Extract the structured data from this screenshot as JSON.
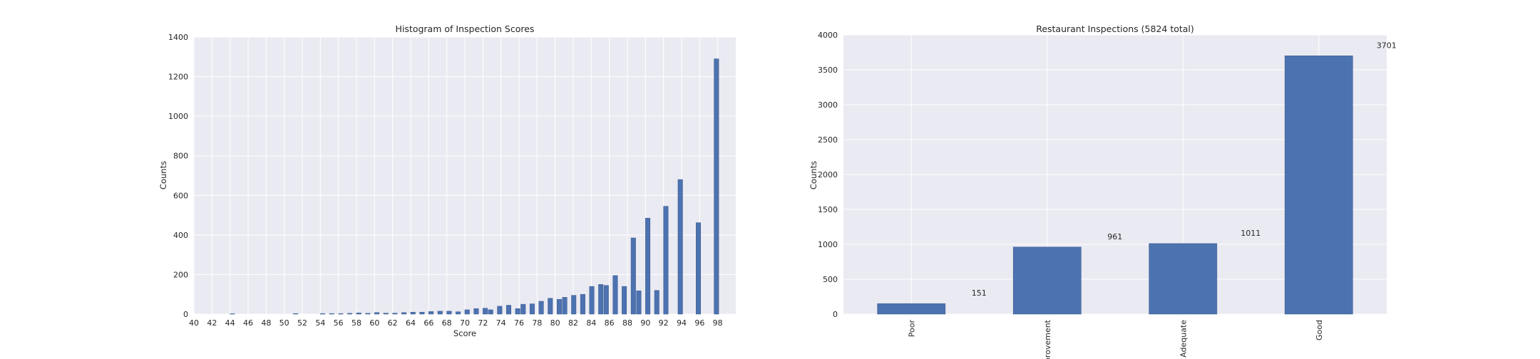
{
  "chart_data": [
    {
      "type": "bar",
      "title": "Histogram of Inspection Scores",
      "xlabel": "Score",
      "ylabel": "Counts",
      "xlim": [
        40,
        100
      ],
      "ylim": [
        0,
        1400
      ],
      "x_ticks": [
        "40",
        "42",
        "44",
        "46",
        "48",
        "50",
        "52",
        "54",
        "56",
        "58",
        "60",
        "62",
        "64",
        "66",
        "68",
        "70",
        "72",
        "74",
        "76",
        "78",
        "80",
        "82",
        "84",
        "86",
        "88",
        "90",
        "92",
        "94",
        "96",
        "98"
      ],
      "y_ticks": [
        "0",
        "200",
        "400",
        "600",
        "800",
        "1000",
        "1200",
        "1400"
      ],
      "grid": true,
      "bins": [
        {
          "x": 44,
          "value": 2
        },
        {
          "x": 51,
          "value": 3
        },
        {
          "x": 54,
          "value": 3
        },
        {
          "x": 55,
          "value": 3
        },
        {
          "x": 56,
          "value": 3
        },
        {
          "x": 57,
          "value": 4
        },
        {
          "x": 58,
          "value": 6
        },
        {
          "x": 59,
          "value": 4
        },
        {
          "x": 60,
          "value": 8
        },
        {
          "x": 61,
          "value": 5
        },
        {
          "x": 62,
          "value": 5
        },
        {
          "x": 63,
          "value": 8
        },
        {
          "x": 64,
          "value": 10
        },
        {
          "x": 65,
          "value": 10
        },
        {
          "x": 66,
          "value": 13
        },
        {
          "x": 67,
          "value": 15
        },
        {
          "x": 68,
          "value": 15
        },
        {
          "x": 69,
          "value": 12
        },
        {
          "x": 70,
          "value": 22
        },
        {
          "x": 71,
          "value": 28
        },
        {
          "x": 72,
          "value": 30
        },
        {
          "x": 72.6,
          "value": 22
        },
        {
          "x": 73.6,
          "value": 40
        },
        {
          "x": 74.6,
          "value": 45
        },
        {
          "x": 75.6,
          "value": 28
        },
        {
          "x": 76.2,
          "value": 50
        },
        {
          "x": 77.2,
          "value": 52
        },
        {
          "x": 78.2,
          "value": 65
        },
        {
          "x": 79.2,
          "value": 80
        },
        {
          "x": 80.2,
          "value": 75
        },
        {
          "x": 80.8,
          "value": 85
        },
        {
          "x": 81.8,
          "value": 95
        },
        {
          "x": 82.8,
          "value": 100
        },
        {
          "x": 83.8,
          "value": 140
        },
        {
          "x": 84.8,
          "value": 150
        },
        {
          "x": 85.4,
          "value": 145
        },
        {
          "x": 86.4,
          "value": 195
        },
        {
          "x": 87.4,
          "value": 140
        },
        {
          "x": 88.4,
          "value": 385
        },
        {
          "x": 89,
          "value": 118
        },
        {
          "x": 90,
          "value": 485
        },
        {
          "x": 91,
          "value": 120
        },
        {
          "x": 92,
          "value": 545
        },
        {
          "x": 93.6,
          "value": 680
        },
        {
          "x": 95.6,
          "value": 462
        },
        {
          "x": 97.6,
          "value": 1290
        }
      ]
    },
    {
      "type": "bar",
      "title": "Restaurant Inspections (5824 total)",
      "xlabel": "",
      "ylabel": "Counts",
      "ylim": [
        0,
        4000
      ],
      "y_ticks": [
        "0",
        "500",
        "1000",
        "1500",
        "2000",
        "2500",
        "3000",
        "3500",
        "4000"
      ],
      "grid": true,
      "categories": [
        "Poor",
        "provement",
        "Adequate",
        "Good"
      ],
      "values": [
        151,
        961,
        1011,
        3701
      ],
      "data_labels": [
        "151",
        "961",
        "1011",
        "3701"
      ]
    }
  ]
}
